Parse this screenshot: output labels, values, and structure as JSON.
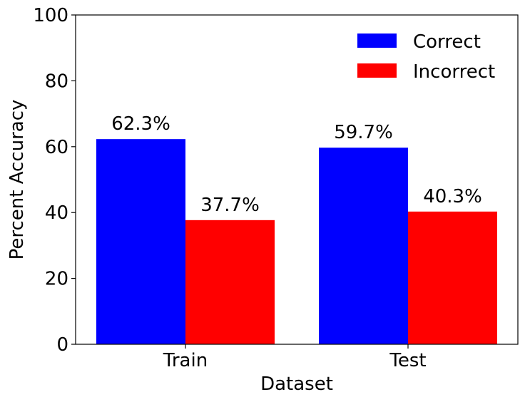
{
  "chart_data": {
    "type": "bar",
    "title": "",
    "xlabel": "Dataset",
    "ylabel": "Percent Accuracy",
    "categories": [
      "Train",
      "Test"
    ],
    "series": [
      {
        "name": "Correct",
        "color": "#0000ff",
        "values": [
          62.3,
          59.7
        ],
        "labels": [
          "62.3%",
          "59.7%"
        ]
      },
      {
        "name": "Incorrect",
        "color": "#ff0000",
        "values": [
          37.7,
          40.3
        ],
        "labels": [
          "37.7%",
          "40.3%"
        ]
      }
    ],
    "ylim": [
      0,
      100
    ],
    "yticks": [
      0,
      20,
      40,
      60,
      80,
      100
    ],
    "ytick_labels": [
      "0",
      "20",
      "40",
      "60",
      "80",
      "100"
    ],
    "grid": false,
    "legend": {
      "position": "top-right"
    }
  }
}
